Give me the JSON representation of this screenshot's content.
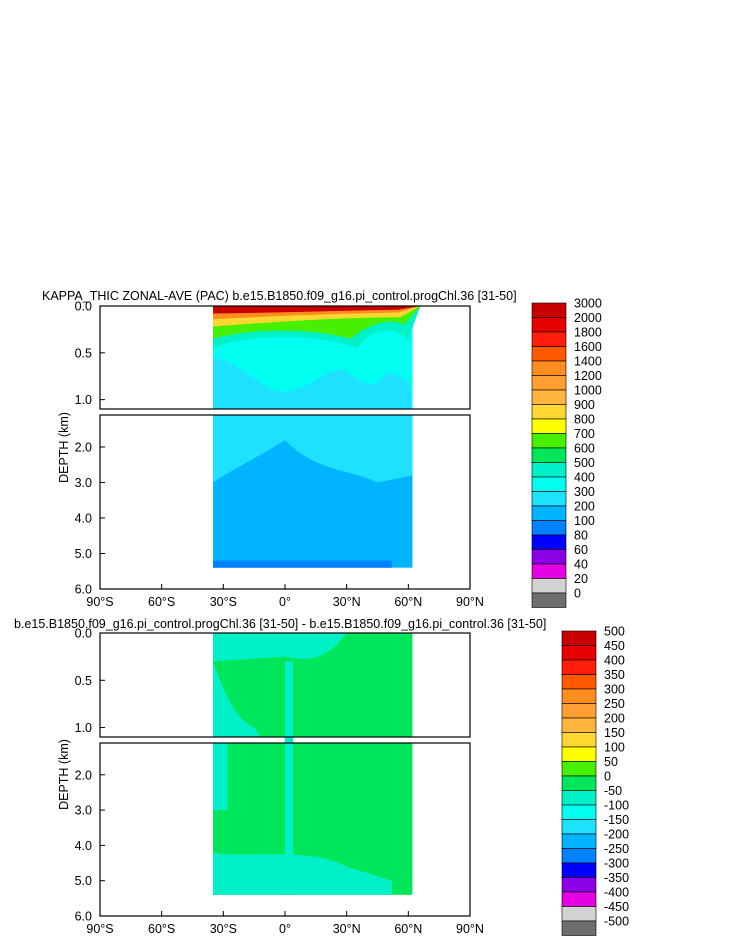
{
  "chart_data": [
    {
      "type": "heatmap",
      "title": "KAPPA_THIC ZONAL-AVE (PAC) b.e15.B1850.f09_g16.pi_control.progChl.36 [31-50]",
      "ylabel": "DEPTH (km)",
      "xlabel": "",
      "x_ticks": [
        "90°S",
        "60°S",
        "30°S",
        "0°",
        "30°N",
        "60°N",
        "90°N"
      ],
      "x_tick_values": [
        -90,
        -60,
        -30,
        0,
        30,
        60,
        90
      ],
      "y_ticks_upper": [
        "0.0",
        "0.5",
        "1.0"
      ],
      "y_ticks_lower": [
        "2.0",
        "3.0",
        "4.0",
        "5.0",
        "6.0"
      ],
      "xlim": [
        -90,
        90
      ],
      "ylim_upper": [
        0,
        1.1
      ],
      "ylim_lower": [
        1.1,
        6.0
      ],
      "legend_labels": [
        "3000",
        "2000",
        "1800",
        "1600",
        "1400",
        "1200",
        "1000",
        "900",
        "800",
        "700",
        "600",
        "500",
        "400",
        "300",
        "200",
        "100",
        "80",
        "60",
        "40",
        "20",
        "0"
      ],
      "legend_colors": [
        "#c80000",
        "#e60000",
        "#ff1e0a",
        "#ff5a00",
        "#ff8c1e",
        "#ff9f32",
        "#ffb43c",
        "#ffd732",
        "#ffff00",
        "#46f000",
        "#00e65a",
        "#00f0c8",
        "#00fff0",
        "#1ee1ff",
        "#00b4ff",
        "#0082ff",
        "#0000ff",
        "#8c00e6",
        "#e600e6",
        "#d2d2d2",
        "#6e6e6e"
      ]
    },
    {
      "type": "heatmap",
      "title": "b.e15.B1850.f09_g16.pi_control.progChl.36 [31-50] - b.e15.B1850.f09_g16.pi_control.36 [31-50]",
      "ylabel": "DEPTH (km)",
      "xlabel": "",
      "x_ticks": [
        "90°S",
        "60°S",
        "30°S",
        "0°",
        "30°N",
        "60°N",
        "90°N"
      ],
      "x_tick_values": [
        -90,
        -60,
        -30,
        0,
        30,
        60,
        90
      ],
      "y_ticks_upper": [
        "0.0",
        "0.5",
        "1.0"
      ],
      "y_ticks_lower": [
        "2.0",
        "3.0",
        "4.0",
        "5.0",
        "6.0"
      ],
      "xlim": [
        -90,
        90
      ],
      "ylim_upper": [
        0,
        1.1
      ],
      "ylim_lower": [
        1.1,
        6.0
      ],
      "legend_labels": [
        "500",
        "450",
        "400",
        "350",
        "300",
        "250",
        "200",
        "150",
        "100",
        "50",
        "0",
        "-50",
        "-100",
        "-150",
        "-200",
        "-250",
        "-300",
        "-350",
        "-400",
        "-450",
        "-500"
      ],
      "legend_colors": [
        "#c80000",
        "#e60000",
        "#ff1e0a",
        "#ff5a00",
        "#ff8c1e",
        "#ff9f32",
        "#ffb43c",
        "#ffd732",
        "#ffff00",
        "#46f000",
        "#00e65a",
        "#00f0c8",
        "#00fff0",
        "#1ee1ff",
        "#00b4ff",
        "#0082ff",
        "#0000ff",
        "#8c00e6",
        "#e600e6",
        "#d2d2d2",
        "#6e6e6e"
      ]
    }
  ]
}
